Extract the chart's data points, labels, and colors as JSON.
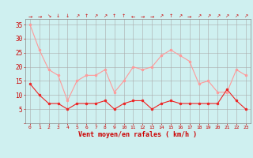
{
  "x": [
    0,
    1,
    2,
    3,
    4,
    5,
    6,
    7,
    8,
    9,
    10,
    11,
    12,
    13,
    14,
    15,
    16,
    17,
    18,
    19,
    20,
    21,
    22,
    23
  ],
  "wind_avg": [
    14,
    10,
    7,
    7,
    5,
    7,
    7,
    7,
    8,
    5,
    7,
    8,
    8,
    5,
    7,
    8,
    7,
    7,
    7,
    7,
    7,
    12,
    8,
    5
  ],
  "wind_gust": [
    35,
    26,
    19,
    17,
    8,
    15,
    17,
    17,
    19,
    11,
    15,
    20,
    19,
    20,
    24,
    26,
    24,
    22,
    14,
    15,
    11,
    11,
    19,
    17
  ],
  "bg_color": "#cff0f0",
  "grid_color": "#aaaaaa",
  "line_avg_color": "#ee2222",
  "line_gust_color": "#ff9999",
  "marker_avg_color": "#ee2222",
  "marker_gust_color": "#ff9999",
  "xlabel": "Vent moyen/en rafales ( km/h )",
  "xlabel_color": "#cc0000",
  "tick_color": "#cc0000",
  "ylim": [
    0,
    37
  ],
  "yticks": [
    0,
    5,
    10,
    15,
    20,
    25,
    30,
    35
  ],
  "arrows": [
    "→",
    "→",
    "↘",
    "↓",
    "↓",
    "↗",
    "↑",
    "↗",
    "↗",
    "↑",
    "↑",
    "←",
    "→",
    "→",
    "↗",
    "↑",
    "↗",
    "→",
    "↗",
    "↗",
    "↗",
    "↗",
    "↗",
    "↗"
  ]
}
